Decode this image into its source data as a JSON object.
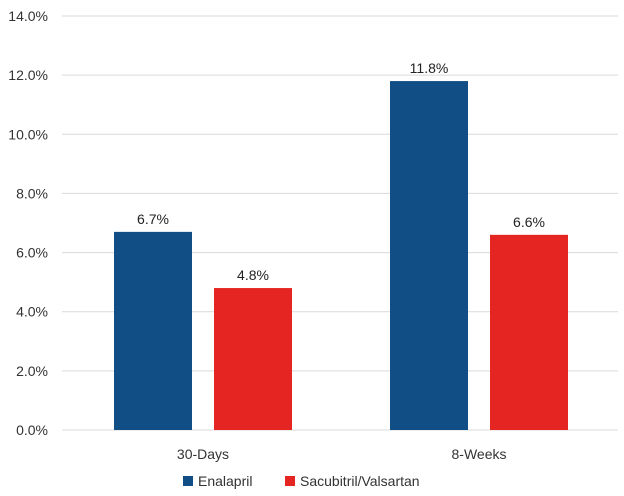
{
  "chart_data": {
    "type": "bar",
    "title": "",
    "xlabel": "",
    "ylabel": "",
    "categories": [
      "30-Days",
      "8-Weeks"
    ],
    "series": [
      {
        "name": "Enalapril",
        "values": [
          6.7,
          11.8
        ],
        "labels": [
          "6.7%",
          "11.8%"
        ],
        "color": "#124e86"
      },
      {
        "name": "Sacubitril/Valsartan",
        "values": [
          4.8,
          6.6
        ],
        "labels": [
          "4.8%",
          "6.6%"
        ],
        "color": "#e52521"
      }
    ],
    "ylim": [
      0,
      14
    ],
    "yticks": [
      0,
      2,
      4,
      6,
      8,
      10,
      12,
      14
    ],
    "ytick_labels": [
      "0.0%",
      "2.0%",
      "4.0%",
      "6.0%",
      "8.0%",
      "10.0%",
      "12.0%",
      "14.0%"
    ],
    "grid": true,
    "legend_position": "bottom"
  }
}
